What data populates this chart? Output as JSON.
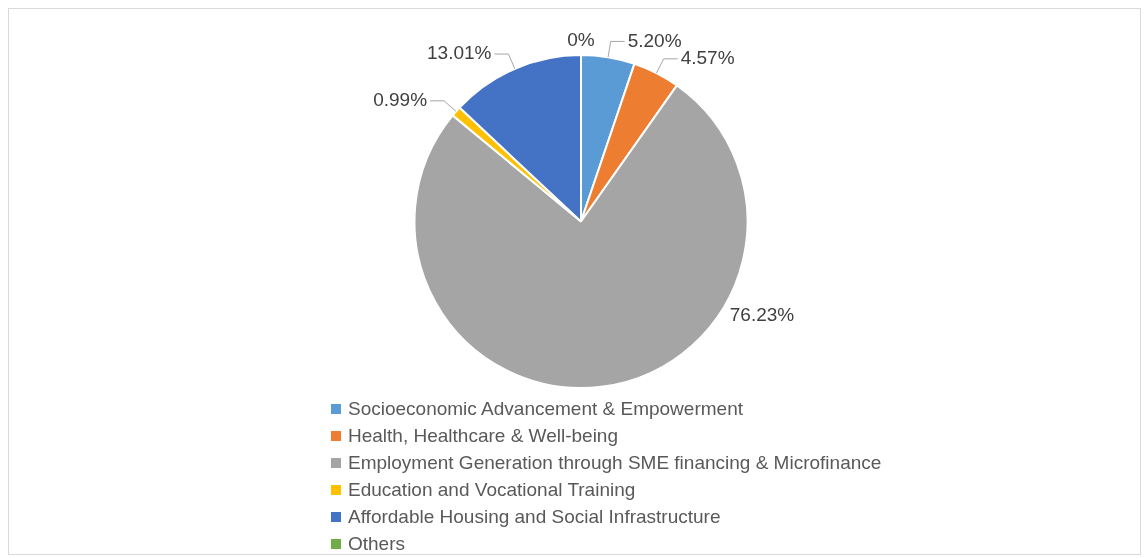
{
  "chart_data": {
    "type": "pie",
    "categories": [
      "Socioeconomic Advancement & Empowerment",
      "Health, Healthcare & Well-being",
      "Employment Generation through SME financing & Microfinance",
      "Education and Vocational Training",
      "Affordable Housing and Social Infrastructure",
      "Others"
    ],
    "values": [
      5.2,
      4.57,
      76.23,
      0.99,
      13.01,
      0
    ],
    "value_labels": [
      "5.20%",
      "4.57%",
      "76.23%",
      "0.99%",
      "13.01%",
      "0%"
    ],
    "colors": [
      "#5b9bd5",
      "#ed7d31",
      "#a5a5a5",
      "#ffc000",
      "#4472c4",
      "#70ad47"
    ],
    "legend": "bottom"
  }
}
